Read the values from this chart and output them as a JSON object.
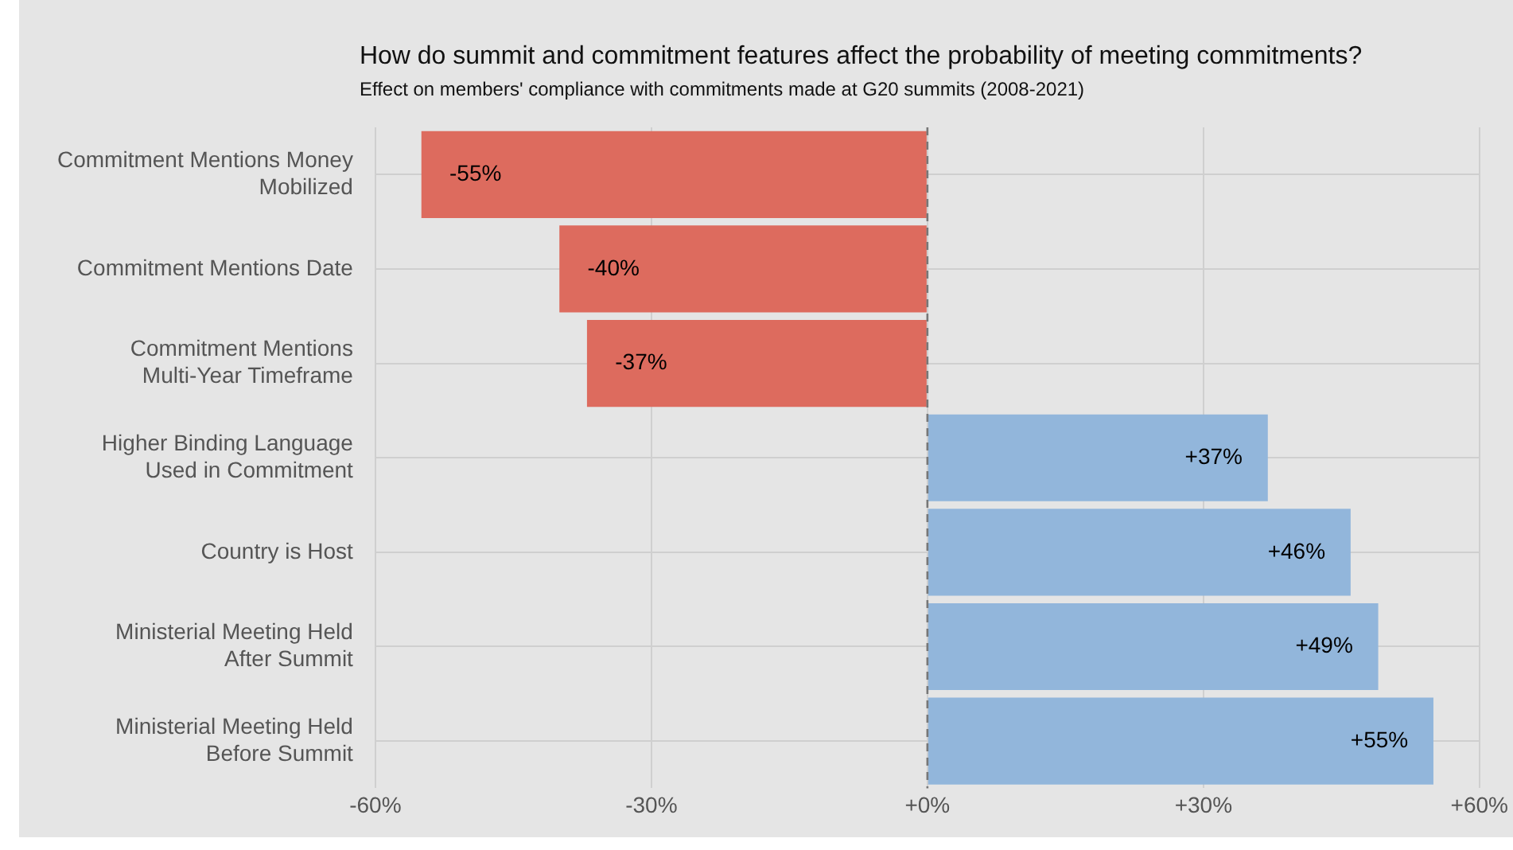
{
  "chart_data": {
    "type": "bar",
    "orientation": "horizontal",
    "title": "How do summit and commitment features affect the probability of meeting commitments?",
    "subtitle": "Effect on members' compliance with commitments made at G20 summits (2008-2021)",
    "categories": [
      "Commitment Mentions Money Mobilized",
      "Commitment Mentions Date",
      "Commitment Mentions Multi-Year Timeframe",
      "Higher Binding Language Used in Commitment",
      "Country is Host",
      "Ministerial Meeting Held After Summit",
      "Ministerial Meeting Held Before Summit"
    ],
    "values": [
      -55,
      -40,
      -37,
      37,
      46,
      49,
      55
    ],
    "colors": [
      "#dd6b5e",
      "#dd6b5e",
      "#dd6b5e",
      "#92b6db",
      "#92b6db",
      "#92b6db",
      "#92b6db"
    ],
    "value_labels": [
      "-55%",
      "-40%",
      "-37%",
      "+37%",
      "+46%",
      "+49%",
      "+55%"
    ],
    "xlim": [
      -60,
      60
    ],
    "xticks": [
      {
        "value": -60,
        "label": "-60%"
      },
      {
        "value": -30,
        "label": "-30%"
      },
      {
        "value": 0,
        "label": "+0%"
      },
      {
        "value": 30,
        "label": "+30%"
      },
      {
        "value": 60,
        "label": "+60%"
      }
    ],
    "ref_lines": [
      {
        "axis": "x",
        "value": 0,
        "color": "#777777",
        "line_style": "dashed"
      }
    ],
    "grid": true
  }
}
